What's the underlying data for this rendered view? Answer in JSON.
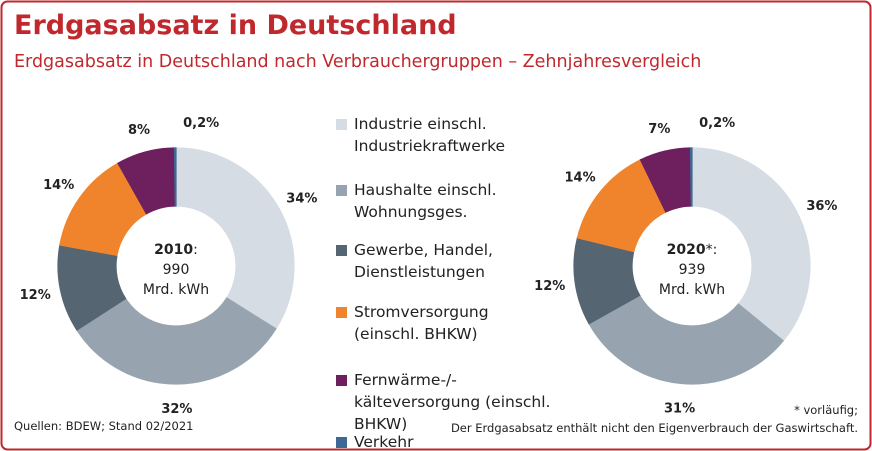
{
  "chart_data": {
    "type": "pie",
    "title": "Erdgasabsatz in Deutschland",
    "subtitle": "Erdgasabsatz in Deutschland nach Verbrauchergruppen – Zehnjahresvergleich",
    "categories": [
      "Industrie einschl.\nIndustriekraftwerke",
      "Haushalte einschl.\nWohnungsges.",
      "Gewerbe, Handel,\nDienstleistungen",
      "Stromversorgung\n(einschl. BHKW)",
      "Fernwärme-/-\nkälteversorgung (einschl.\nBHKW)",
      "Verkehr"
    ],
    "colors": [
      "#d6dce4",
      "#97a4b0",
      "#566572",
      "#f0842c",
      "#6e1f5e",
      "#3d6a94"
    ],
    "series": [
      {
        "name": "2010",
        "suffix": ":",
        "total": 990,
        "unit": "Mrd. kWh",
        "values": [
          34,
          32,
          12,
          14,
          8,
          0.2
        ],
        "value_labels": [
          "34%",
          "32%",
          "12%",
          "14%",
          "8%",
          "0,2%"
        ]
      },
      {
        "name": "2020",
        "suffix": "*:",
        "total": 939,
        "unit": "Mrd. kWh",
        "values": [
          36,
          31,
          12,
          14,
          7,
          0.2
        ],
        "value_labels": [
          "36%",
          "31%",
          "12%",
          "14%",
          "7%",
          "0,2%"
        ]
      }
    ],
    "source": "Quellen: BDEW; Stand 02/2021",
    "notes": [
      "* vorläufig;",
      "Der Erdgasabsatz enthält nicht den Eigenverbrauch der Gaswirtschaft."
    ]
  }
}
